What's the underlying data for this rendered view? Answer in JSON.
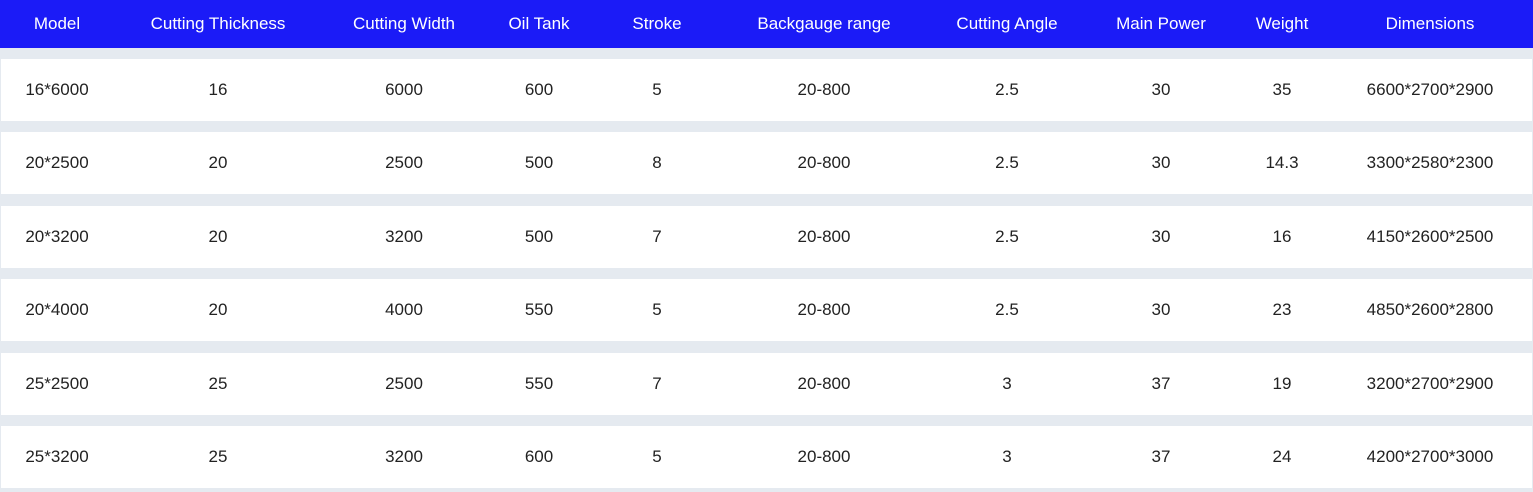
{
  "table": {
    "header": [
      "Model",
      "Cutting Thickness",
      "Cutting Width",
      "Oil Tank",
      "Stroke",
      "Backgauge range",
      "Cutting Angle",
      "Main Power",
      "Weight",
      "Dimensions"
    ],
    "rows": [
      [
        "16*6000",
        16,
        6000,
        600,
        5,
        "20-800",
        2.5,
        30,
        35,
        "6600*2700*2900"
      ],
      [
        "20*2500",
        20,
        2500,
        500,
        8,
        "20-800",
        2.5,
        30,
        14.3,
        "3300*2580*2300"
      ],
      [
        "20*3200",
        20,
        3200,
        500,
        7,
        "20-800",
        2.5,
        30,
        16,
        "4150*2600*2500"
      ],
      [
        "20*4000",
        20,
        4000,
        550,
        5,
        "20-800",
        2.5,
        30,
        23,
        "4850*2600*2800"
      ],
      [
        "25*2500",
        25,
        2500,
        550,
        7,
        "20-800",
        3,
        37,
        19,
        "3200*2700*2900"
      ],
      [
        "25*3200",
        25,
        3200,
        600,
        5,
        "20-800",
        3,
        37,
        24,
        "4200*2700*3000"
      ]
    ]
  }
}
